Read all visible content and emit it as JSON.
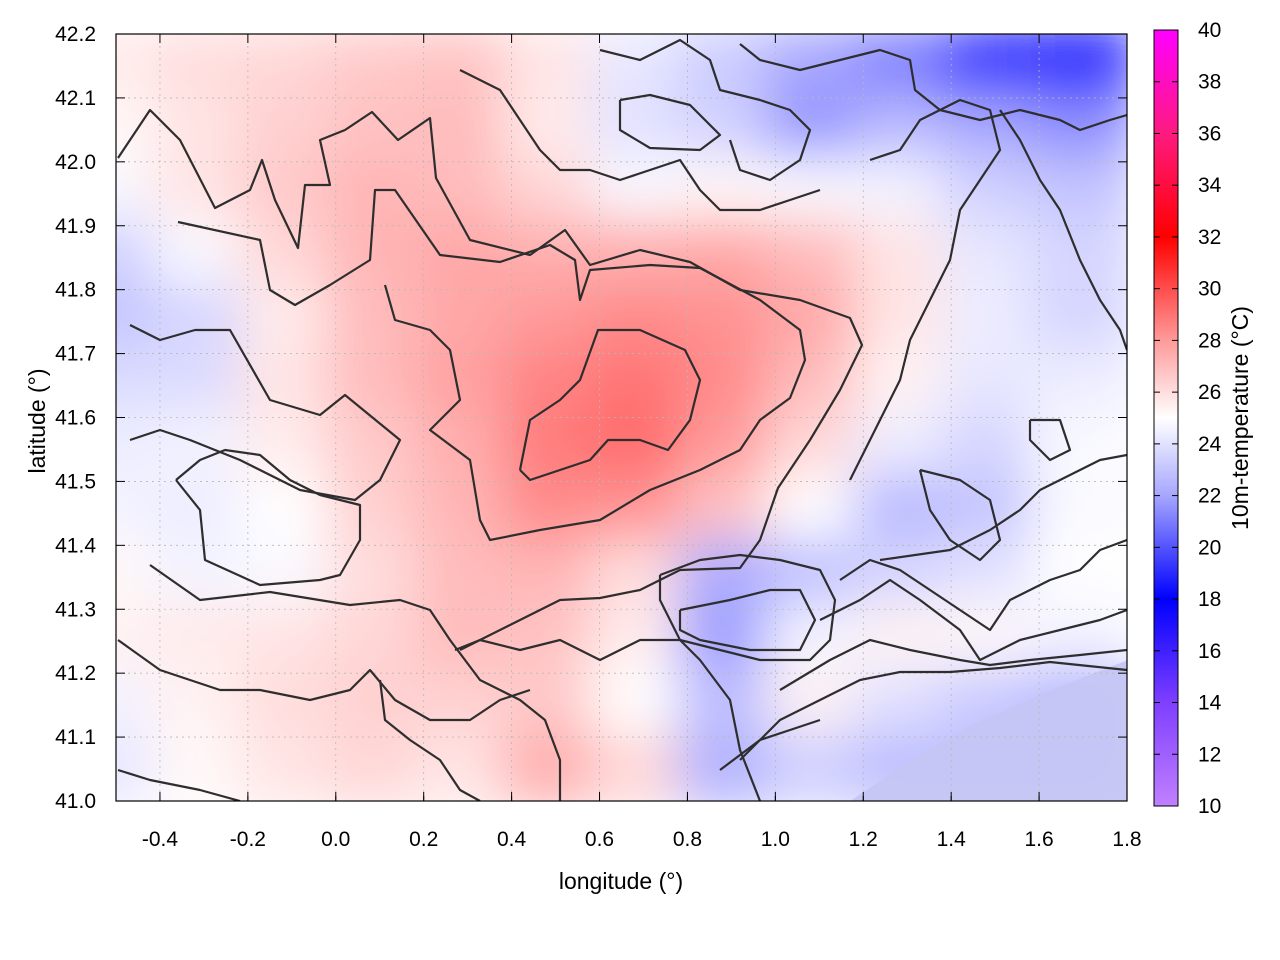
{
  "chart_data": {
    "type": "heatmap",
    "xlabel": "longitude (°)",
    "ylabel": "latitude (°)",
    "colorbar_label": "10m-temperature (°C)",
    "xlim": [
      -0.5,
      1.8
    ],
    "ylim": [
      41.0,
      42.2
    ],
    "x_ticks": [
      "-0.4",
      "-0.2",
      "0.0",
      "0.2",
      "0.4",
      "0.6",
      "0.8",
      "1.0",
      "1.2",
      "1.4",
      "1.6",
      "1.8"
    ],
    "x_tick_values": [
      -0.4,
      -0.2,
      0.0,
      0.2,
      0.4,
      0.6,
      0.8,
      1.0,
      1.2,
      1.4,
      1.6,
      1.8
    ],
    "y_ticks": [
      "41.0",
      "41.1",
      "41.2",
      "41.3",
      "41.4",
      "41.5",
      "41.6",
      "41.7",
      "41.8",
      "41.9",
      "42.0",
      "42.1",
      "42.2"
    ],
    "y_tick_values": [
      41.0,
      41.1,
      41.2,
      41.3,
      41.4,
      41.5,
      41.6,
      41.7,
      41.8,
      41.9,
      42.0,
      42.1,
      42.2
    ],
    "colorbar_range": [
      10,
      40
    ],
    "colorbar_ticks": [
      "10",
      "12",
      "14",
      "16",
      "18",
      "20",
      "22",
      "24",
      "26",
      "28",
      "30",
      "32",
      "34",
      "36",
      "38",
      "40"
    ],
    "colorbar_tick_values": [
      10,
      12,
      14,
      16,
      18,
      20,
      22,
      24,
      26,
      28,
      30,
      32,
      34,
      36,
      38,
      40
    ],
    "colormap": [
      {
        "value": 10,
        "color": "#c080ff"
      },
      {
        "value": 14,
        "color": "#7f3fff"
      },
      {
        "value": 18,
        "color": "#0000ff"
      },
      {
        "value": 22,
        "color": "#a6a6ff"
      },
      {
        "value": 25,
        "color": "#ffffff"
      },
      {
        "value": 28,
        "color": "#ff9a9a"
      },
      {
        "value": 32,
        "color": "#ff0000"
      },
      {
        "value": 36,
        "color": "#ff1a80"
      },
      {
        "value": 40,
        "color": "#ff00ff"
      }
    ],
    "grid": true,
    "grid_style": "dotted",
    "contour_color": "#2e2e2e",
    "temperature_samples": {
      "x": [
        -0.5,
        -0.3,
        -0.1,
        0.1,
        0.3,
        0.5,
        0.7,
        0.9,
        1.1,
        1.3,
        1.5,
        1.7
      ],
      "y": [
        42.15,
        42.05,
        41.95,
        41.85,
        41.75,
        41.65,
        41.55,
        41.45,
        41.35,
        41.25,
        41.15,
        41.05
      ],
      "values": [
        [
          25.6,
          26.0,
          26.2,
          26.6,
          26.8,
          25.8,
          24.2,
          23.2,
          22.0,
          21.0,
          18.8,
          18.4
        ],
        [
          25.2,
          25.8,
          26.4,
          26.8,
          27.0,
          25.6,
          24.0,
          23.4,
          21.6,
          22.6,
          22.0,
          21.4
        ],
        [
          24.8,
          25.8,
          26.6,
          27.2,
          27.0,
          26.2,
          24.8,
          25.2,
          24.8,
          24.6,
          23.4,
          23.0
        ],
        [
          23.4,
          24.8,
          26.2,
          27.2,
          27.6,
          27.4,
          27.4,
          27.6,
          27.0,
          25.8,
          24.2,
          23.6
        ],
        [
          23.0,
          23.6,
          25.6,
          27.0,
          27.6,
          28.0,
          28.4,
          28.2,
          27.6,
          25.8,
          24.4,
          23.6
        ],
        [
          23.8,
          23.8,
          25.8,
          27.0,
          27.8,
          28.6,
          29.0,
          28.4,
          27.0,
          25.4,
          24.2,
          24.4
        ],
        [
          24.4,
          24.6,
          25.6,
          26.6,
          27.4,
          28.8,
          29.2,
          28.0,
          26.2,
          24.4,
          23.6,
          24.8
        ],
        [
          24.6,
          24.4,
          25.0,
          26.4,
          27.2,
          28.4,
          28.2,
          26.8,
          25.0,
          22.6,
          23.0,
          24.8
        ],
        [
          25.2,
          24.6,
          24.8,
          26.0,
          27.0,
          27.2,
          26.0,
          22.2,
          22.8,
          23.6,
          24.0,
          25.0
        ],
        [
          25.4,
          25.6,
          25.8,
          26.2,
          27.0,
          26.8,
          25.6,
          21.8,
          24.6,
          25.4,
          25.2,
          24.6
        ],
        [
          24.6,
          25.4,
          26.0,
          26.4,
          26.4,
          26.6,
          25.0,
          22.8,
          25.4,
          24.0,
          23.2,
          22.6
        ],
        [
          24.2,
          25.2,
          25.8,
          26.2,
          25.8,
          27.4,
          26.2,
          22.4,
          23.4,
          22.8,
          22.8,
          22.8
        ]
      ]
    }
  }
}
